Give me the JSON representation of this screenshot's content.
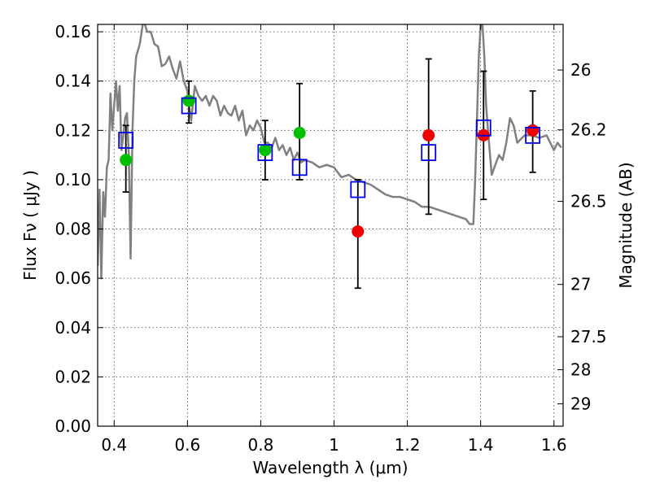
{
  "chart_data": {
    "type": "scatter",
    "title": "",
    "xlabel": "Wavelength  λ (μm)",
    "ylabel": "Flux  Fν  ( μJy )",
    "ylabel_right": "Magnitude (AB)",
    "xlim": [
      0.355,
      1.625
    ],
    "ylim": [
      0.0,
      0.163
    ],
    "grid": true,
    "x_ticks": [
      0.4,
      0.6,
      0.8,
      1.0,
      1.2,
      1.4,
      1.6
    ],
    "x_tick_labels": [
      "0.4",
      "0.6",
      "0.8",
      "1",
      "1.2",
      "1.4",
      "1.6"
    ],
    "y_ticks": [
      0.0,
      0.02,
      0.04,
      0.06,
      0.08,
      0.1,
      0.12,
      0.14,
      0.16
    ],
    "y_tick_labels": [
      "0.00",
      "0.02",
      "0.04",
      "0.06",
      "0.08",
      "0.10",
      "0.12",
      "0.14",
      "0.16"
    ],
    "right_ticks": [
      {
        "label": "26",
        "flux": 0.1445
      },
      {
        "label": "26.2",
        "flux": 0.1202
      },
      {
        "label": "26.5",
        "flux": 0.0912
      },
      {
        "label": "27",
        "flux": 0.0575
      },
      {
        "label": "27.5",
        "flux": 0.0363
      },
      {
        "label": "28",
        "flux": 0.0229
      },
      {
        "label": "29",
        "flux": 0.0091
      }
    ],
    "colors": {
      "model": "#808080",
      "green": "#00c000",
      "red": "#ee0000",
      "squares": "#0000ee",
      "errorbar": "#000000"
    },
    "series": [
      {
        "kind": "model_spectrum",
        "x": [
          0.355,
          0.36,
          0.365,
          0.37,
          0.375,
          0.38,
          0.385,
          0.39,
          0.395,
          0.4,
          0.405,
          0.41,
          0.415,
          0.42,
          0.425,
          0.43,
          0.435,
          0.44,
          0.445,
          0.45,
          0.455,
          0.46,
          0.47,
          0.48,
          0.49,
          0.5,
          0.51,
          0.52,
          0.53,
          0.54,
          0.55,
          0.56,
          0.57,
          0.58,
          0.59,
          0.6,
          0.61,
          0.62,
          0.63,
          0.64,
          0.65,
          0.66,
          0.67,
          0.68,
          0.69,
          0.7,
          0.71,
          0.72,
          0.73,
          0.74,
          0.75,
          0.76,
          0.77,
          0.78,
          0.79,
          0.8,
          0.81,
          0.82,
          0.83,
          0.84,
          0.85,
          0.86,
          0.87,
          0.88,
          0.89,
          0.9,
          0.91,
          0.92,
          0.94,
          0.96,
          0.98,
          1.0,
          1.02,
          1.04,
          1.06,
          1.08,
          1.1,
          1.12,
          1.14,
          1.16,
          1.18,
          1.2,
          1.22,
          1.24,
          1.26,
          1.28,
          1.3,
          1.32,
          1.34,
          1.36,
          1.37,
          1.38,
          1.385,
          1.39,
          1.395,
          1.4,
          1.405,
          1.41,
          1.415,
          1.42,
          1.43,
          1.44,
          1.45,
          1.46,
          1.47,
          1.48,
          1.49,
          1.5,
          1.52,
          1.54,
          1.56,
          1.58,
          1.6,
          1.61,
          1.62
        ],
        "y": [
          0.065,
          0.096,
          0.06,
          0.095,
          0.085,
          0.105,
          0.108,
          0.135,
          0.12,
          0.13,
          0.14,
          0.128,
          0.138,
          0.112,
          0.118,
          0.125,
          0.127,
          0.11,
          0.068,
          0.12,
          0.14,
          0.15,
          0.155,
          0.165,
          0.16,
          0.16,
          0.155,
          0.154,
          0.146,
          0.147,
          0.15,
          0.145,
          0.141,
          0.148,
          0.14,
          0.136,
          0.124,
          0.138,
          0.134,
          0.132,
          0.134,
          0.13,
          0.134,
          0.132,
          0.126,
          0.13,
          0.127,
          0.126,
          0.13,
          0.124,
          0.128,
          0.118,
          0.122,
          0.12,
          0.124,
          0.121,
          0.115,
          0.115,
          0.113,
          0.117,
          0.112,
          0.114,
          0.11,
          0.113,
          0.108,
          0.111,
          0.107,
          0.108,
          0.107,
          0.105,
          0.106,
          0.105,
          0.101,
          0.102,
          0.1,
          0.099,
          0.098,
          0.096,
          0.094,
          0.093,
          0.093,
          0.092,
          0.091,
          0.089,
          0.089,
          0.088,
          0.087,
          0.086,
          0.085,
          0.084,
          0.082,
          0.082,
          0.1,
          0.125,
          0.15,
          0.163,
          0.163,
          0.15,
          0.13,
          0.12,
          0.102,
          0.106,
          0.11,
          0.108,
          0.115,
          0.125,
          0.122,
          0.115,
          0.118,
          0.118,
          0.117,
          0.118,
          0.112,
          0.115,
          0.113
        ]
      },
      {
        "kind": "filled_circles",
        "color_key": "green",
        "x": [
          0.432,
          0.604,
          0.812,
          0.906
        ],
        "y": [
          0.108,
          0.132,
          0.112,
          0.119
        ]
      },
      {
        "kind": "filled_circles",
        "color_key": "red",
        "x": [
          1.065,
          1.258,
          1.408,
          1.542
        ],
        "y": [
          0.079,
          0.118,
          0.118,
          0.12
        ]
      },
      {
        "kind": "open_squares",
        "color_key": "squares",
        "x": [
          0.432,
          0.604,
          0.812,
          0.906,
          1.065,
          1.258,
          1.408,
          1.542
        ],
        "y": [
          0.116,
          0.13,
          0.111,
          0.105,
          0.096,
          0.111,
          0.121,
          0.118
        ]
      },
      {
        "kind": "error_bars",
        "x": [
          0.432,
          0.604,
          0.812,
          0.906,
          1.065,
          1.258,
          1.408,
          1.542
        ],
        "y_low": [
          0.095,
          0.123,
          0.1,
          0.1,
          0.056,
          0.086,
          0.092,
          0.103
        ],
        "y_high": [
          0.122,
          0.14,
          0.124,
          0.139,
          0.1,
          0.149,
          0.144,
          0.136
        ]
      }
    ]
  }
}
